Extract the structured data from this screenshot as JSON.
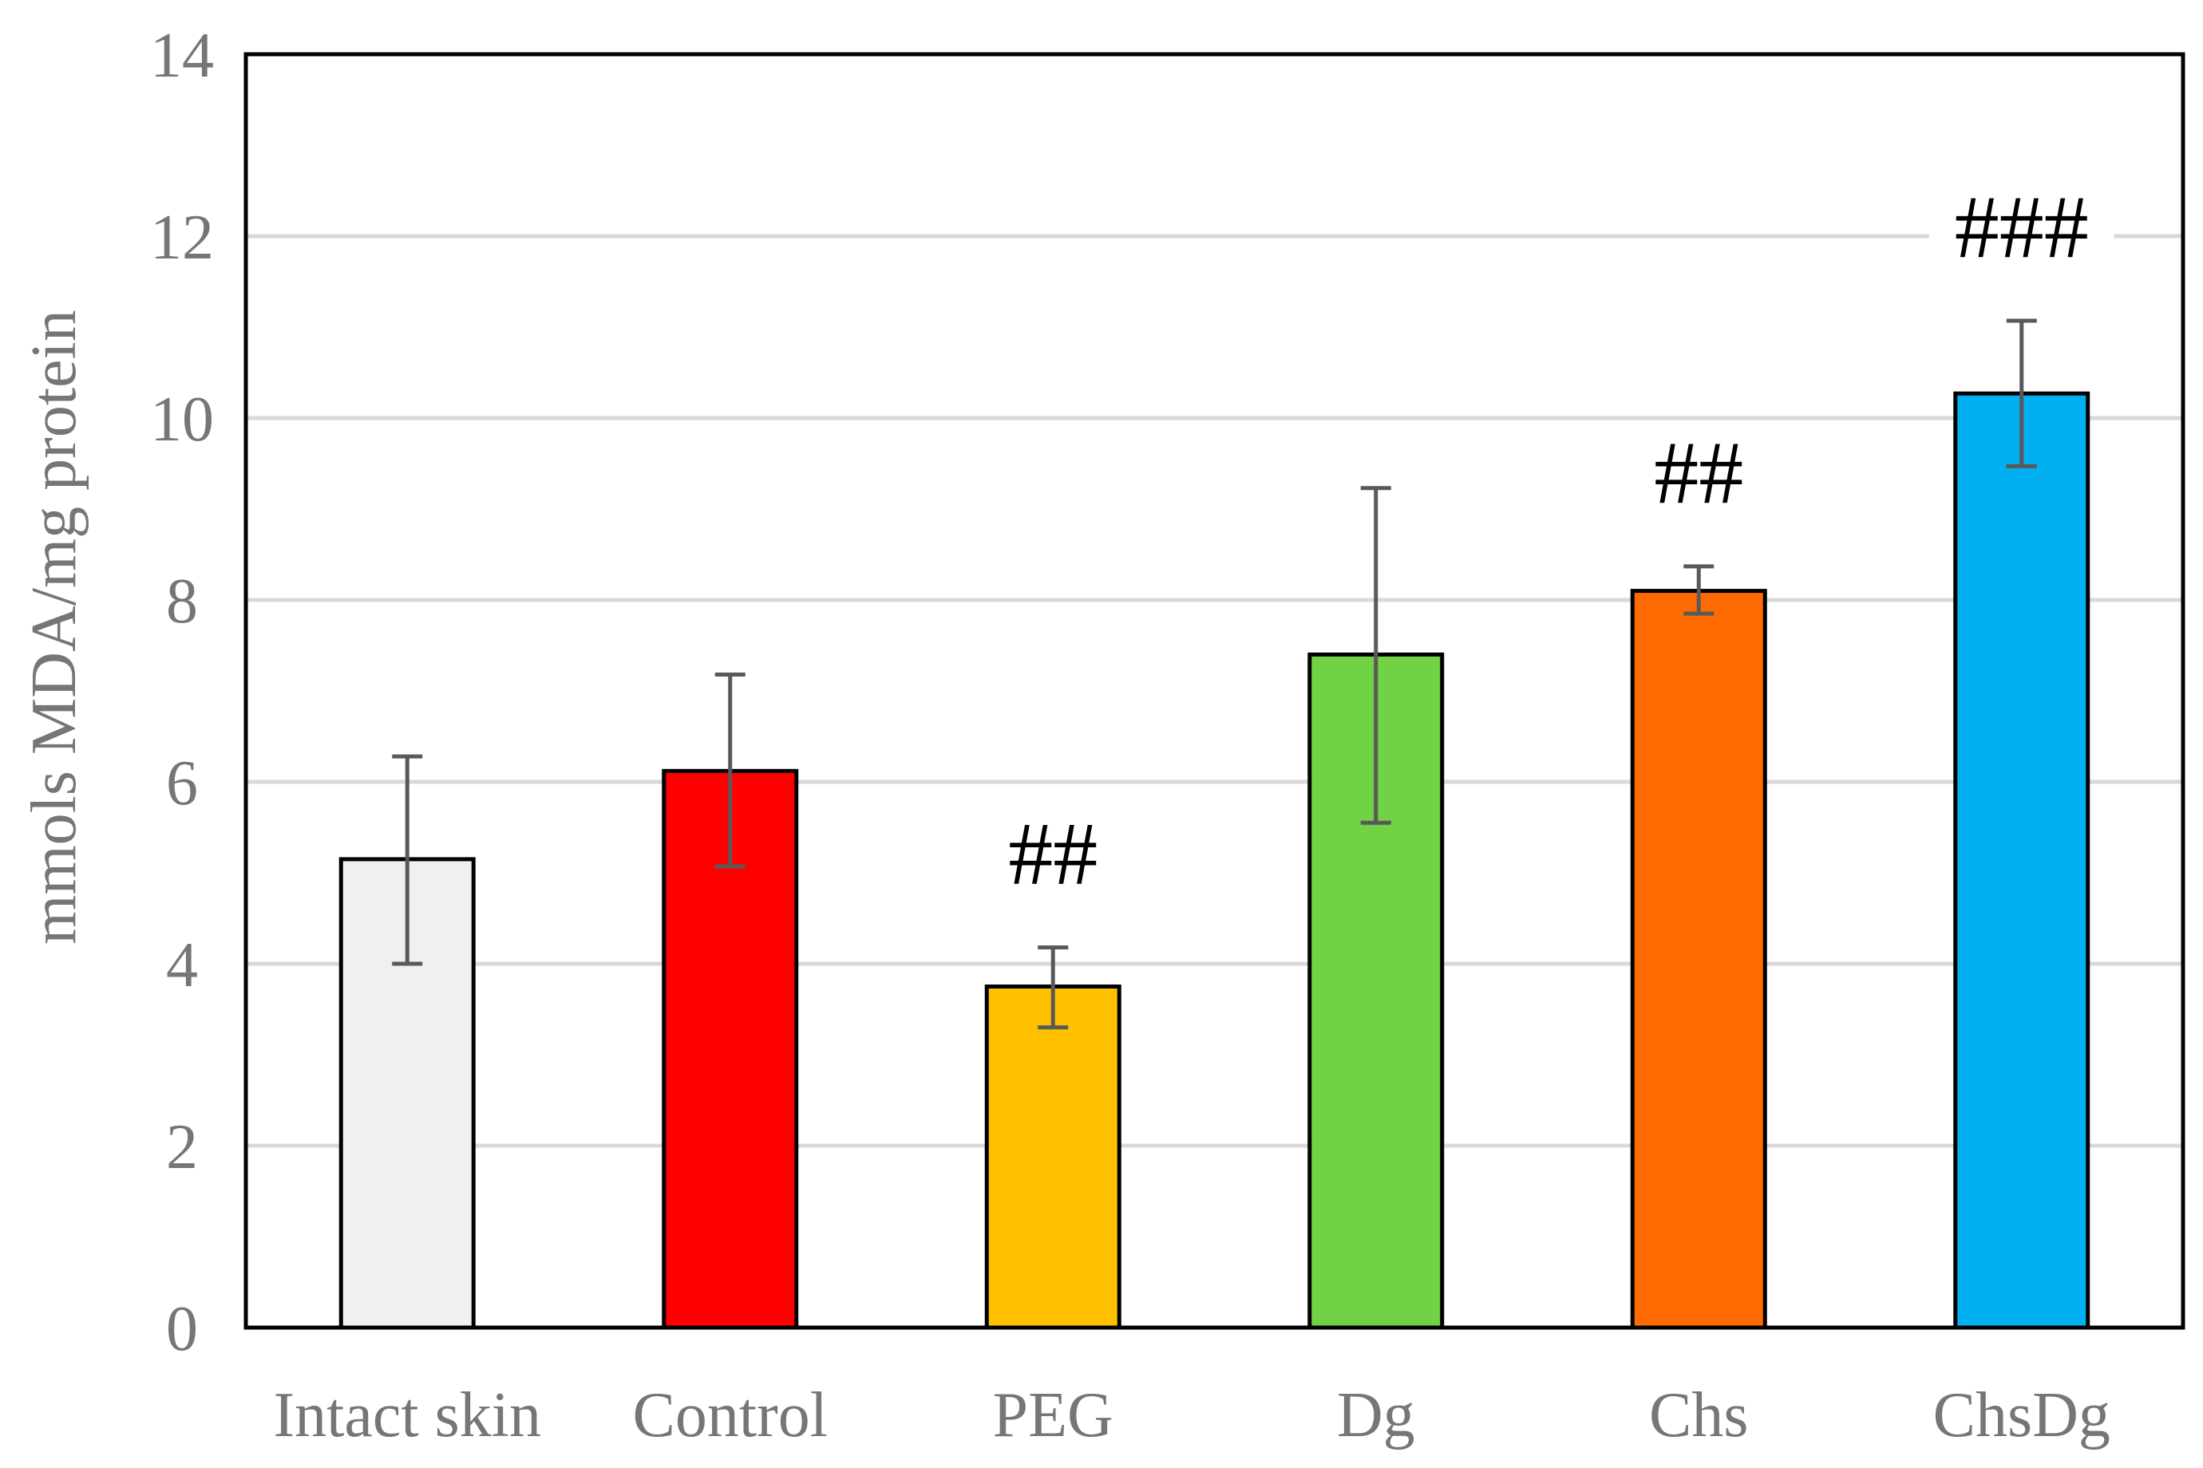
{
  "chart_data": {
    "type": "bar",
    "title": "",
    "xlabel": "",
    "ylabel": "mmols MDA/mg protein",
    "ylim": [
      0,
      14
    ],
    "yticks": [
      0,
      2,
      4,
      6,
      8,
      10,
      12,
      14
    ],
    "grid": true,
    "legend": "none",
    "categories": [
      "Intact skin",
      "Control",
      "PEG",
      "Dg",
      "Chs",
      "ChsDg"
    ],
    "values": [
      5.15,
      6.12,
      3.75,
      7.4,
      8.1,
      10.27
    ],
    "error_low": [
      4.0,
      5.07,
      3.3,
      5.55,
      7.85,
      9.47
    ],
    "error_high": [
      6.28,
      7.18,
      4.18,
      9.23,
      8.37,
      11.07
    ],
    "colors": [
      "#f0f0f0",
      "#ff0000",
      "#ffc000",
      "#70d244",
      "#ff6b00",
      "#00b0f0"
    ],
    "annotations": [
      "",
      "",
      "##",
      "",
      "##",
      "###"
    ]
  }
}
